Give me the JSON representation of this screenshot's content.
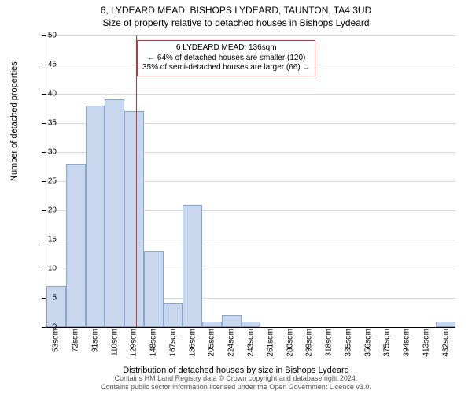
{
  "title_line1": "6, LYDEARD MEAD, BISHOPS LYDEARD, TAUNTON, TA4 3UD",
  "title_line2": "Size of property relative to detached houses in Bishops Lydeard",
  "y_axis_label": "Number of detached properties",
  "x_axis_label": "Distribution of detached houses by size in Bishops Lydeard",
  "footer_line1": "Contains HM Land Registry data © Crown copyright and database right 2024.",
  "footer_line2": "Contains public sector information licensed under the Open Government Licence v3.0.",
  "annotation": {
    "line1": "6 LYDEARD MEAD: 136sqm",
    "line2": "← 64% of detached houses are smaller (120)",
    "line3": "35% of semi-detached houses are larger (66) →"
  },
  "chart": {
    "type": "histogram",
    "ylim": [
      0,
      50
    ],
    "yticks": [
      0,
      5,
      10,
      15,
      20,
      25,
      30,
      35,
      40,
      45,
      50
    ],
    "xtick_labels": [
      "53sqm",
      "72sqm",
      "91sqm",
      "110sqm",
      "129sqm",
      "148sqm",
      "167sqm",
      "186sqm",
      "205sqm",
      "224sqm",
      "243sqm",
      "261sqm",
      "280sqm",
      "299sqm",
      "318sqm",
      "335sqm",
      "356sqm",
      "375sqm",
      "394sqm",
      "413sqm",
      "432sqm"
    ],
    "bar_values": [
      7,
      28,
      38,
      39,
      37,
      13,
      4,
      21,
      1,
      2,
      1,
      0,
      0,
      0,
      0,
      0,
      0,
      0,
      0,
      0,
      1
    ],
    "bar_color": "#c8d7ee",
    "bar_border_color": "#8aa5cc",
    "grid_color": "#d9d9d9",
    "marker_color": "#d03030",
    "marker_position": 136,
    "x_range": [
      53,
      432
    ],
    "background_color": "#ffffff",
    "title_fontsize": 12,
    "label_fontsize": 11,
    "tick_fontsize": 10
  }
}
